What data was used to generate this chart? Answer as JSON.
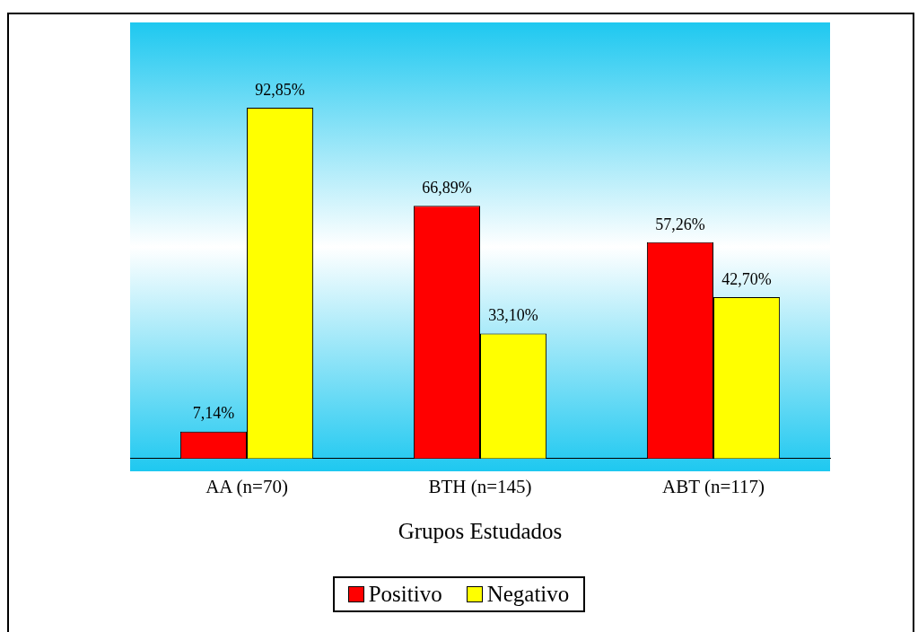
{
  "chart_data": {
    "type": "bar",
    "xlabel": "Grupos Estudados",
    "categories": [
      "AA (n=70)",
      "BTH (n=145)",
      "ABT (n=117)"
    ],
    "series": [
      {
        "name": "Positivo",
        "color": "#ff0000",
        "values": [
          7.14,
          66.89,
          57.26
        ],
        "value_labels": [
          "7,14%",
          "66,89%",
          "57,26%"
        ]
      },
      {
        "name": "Negativo",
        "color": "#ffff00",
        "values": [
          92.85,
          33.1,
          42.7
        ],
        "value_labels": [
          "92,85%",
          "33,10%",
          "42,70%"
        ]
      }
    ],
    "legend": "bottom",
    "grid": false
  }
}
